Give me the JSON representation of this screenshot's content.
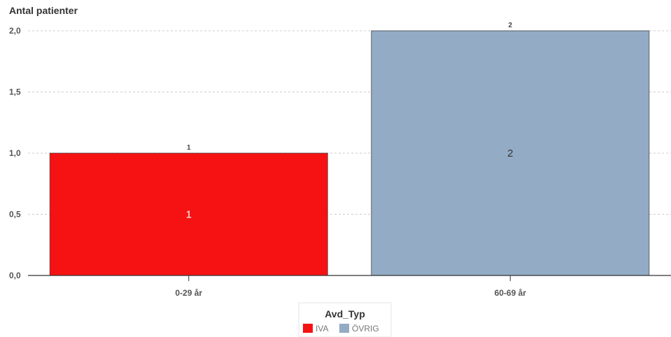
{
  "chart_data": {
    "type": "bar",
    "ylabel": "Antal patienter",
    "xlabel": "",
    "categories": [
      "0-29 år",
      "60-69 år"
    ],
    "series": [
      {
        "name": "IVA",
        "color": "#f61212",
        "values": [
          1,
          null
        ]
      },
      {
        "name": "ÖVRIG",
        "color": "#93abc5",
        "values": [
          null,
          2
        ]
      }
    ],
    "ylim": [
      0,
      2
    ],
    "yticks": [
      "0,0",
      "0,5",
      "1,0",
      "1,5",
      "2,0"
    ],
    "ytick_values": [
      0,
      0.5,
      1,
      1.5,
      2
    ],
    "top_labels": [
      "1",
      "2"
    ],
    "inner_labels": [
      "1",
      "2"
    ],
    "inner_label_colors": [
      "#ffffff",
      "#333333"
    ],
    "grid": true,
    "legend": {
      "title": "Avd_Typ",
      "placement": "bottom-center"
    }
  }
}
